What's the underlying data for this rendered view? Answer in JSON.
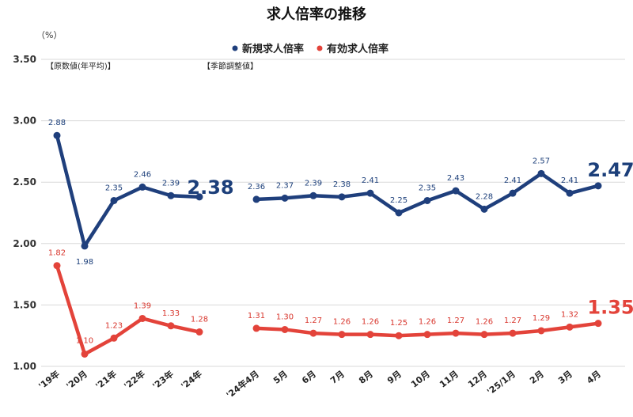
{
  "colors": {
    "blue": "#1f3f7c",
    "red": "#e3433a",
    "grid": "#d9d9d9"
  },
  "chart_data": {
    "type": "line",
    "title": "求人倍率の推移",
    "unit_label": "（%）",
    "ylim": [
      1.0,
      3.5
    ],
    "yticks": [
      "1.00",
      "1.50",
      "2.00",
      "2.50",
      "3.00",
      "3.50"
    ],
    "grid": true,
    "legend_position": "top-center",
    "notes": {
      "annual": "【原数値(年平均)】",
      "monthly": "【季節調整値】"
    },
    "categories": [
      "'19年",
      "'20月",
      "'21年",
      "'22年",
      "'23年",
      "'24年",
      "'24年4月",
      "5月",
      "6月",
      "7月",
      "8月",
      "9月",
      "10月",
      "11月",
      "12月",
      "'25/1月",
      "2月",
      "3月",
      "4月"
    ],
    "series": [
      {
        "name": "新規求人倍率",
        "color": "#1f3f7c",
        "annual": [
          2.88,
          1.98,
          2.35,
          2.46,
          2.39,
          2.38
        ],
        "annual_labels": [
          "2.88",
          "1.98",
          "2.35",
          "2.46",
          "2.39",
          "2.38"
        ],
        "monthly": [
          2.36,
          2.37,
          2.39,
          2.38,
          2.41,
          2.25,
          2.35,
          2.43,
          2.28,
          2.41,
          2.57,
          2.41,
          2.47
        ],
        "monthly_labels": [
          "2.36",
          "2.37",
          "2.39",
          "2.38",
          "2.41",
          "2.25",
          "2.35",
          "2.43",
          "2.28",
          "2.41",
          "2.57",
          "2.41",
          "2.47"
        ]
      },
      {
        "name": "有効求人倍率",
        "color": "#e3433a",
        "annual": [
          1.82,
          1.1,
          1.23,
          1.39,
          1.33,
          1.28
        ],
        "annual_labels": [
          "1.82",
          "1.10",
          "1.23",
          "1.39",
          "1.33",
          "1.28"
        ],
        "monthly": [
          1.31,
          1.3,
          1.27,
          1.26,
          1.26,
          1.25,
          1.26,
          1.27,
          1.26,
          1.27,
          1.29,
          1.32,
          1.35
        ],
        "monthly_labels": [
          "1.31",
          "1.30",
          "1.27",
          "1.26",
          "1.26",
          "1.25",
          "1.26",
          "1.27",
          "1.26",
          "1.27",
          "1.29",
          "1.32",
          "1.35"
        ]
      }
    ]
  }
}
